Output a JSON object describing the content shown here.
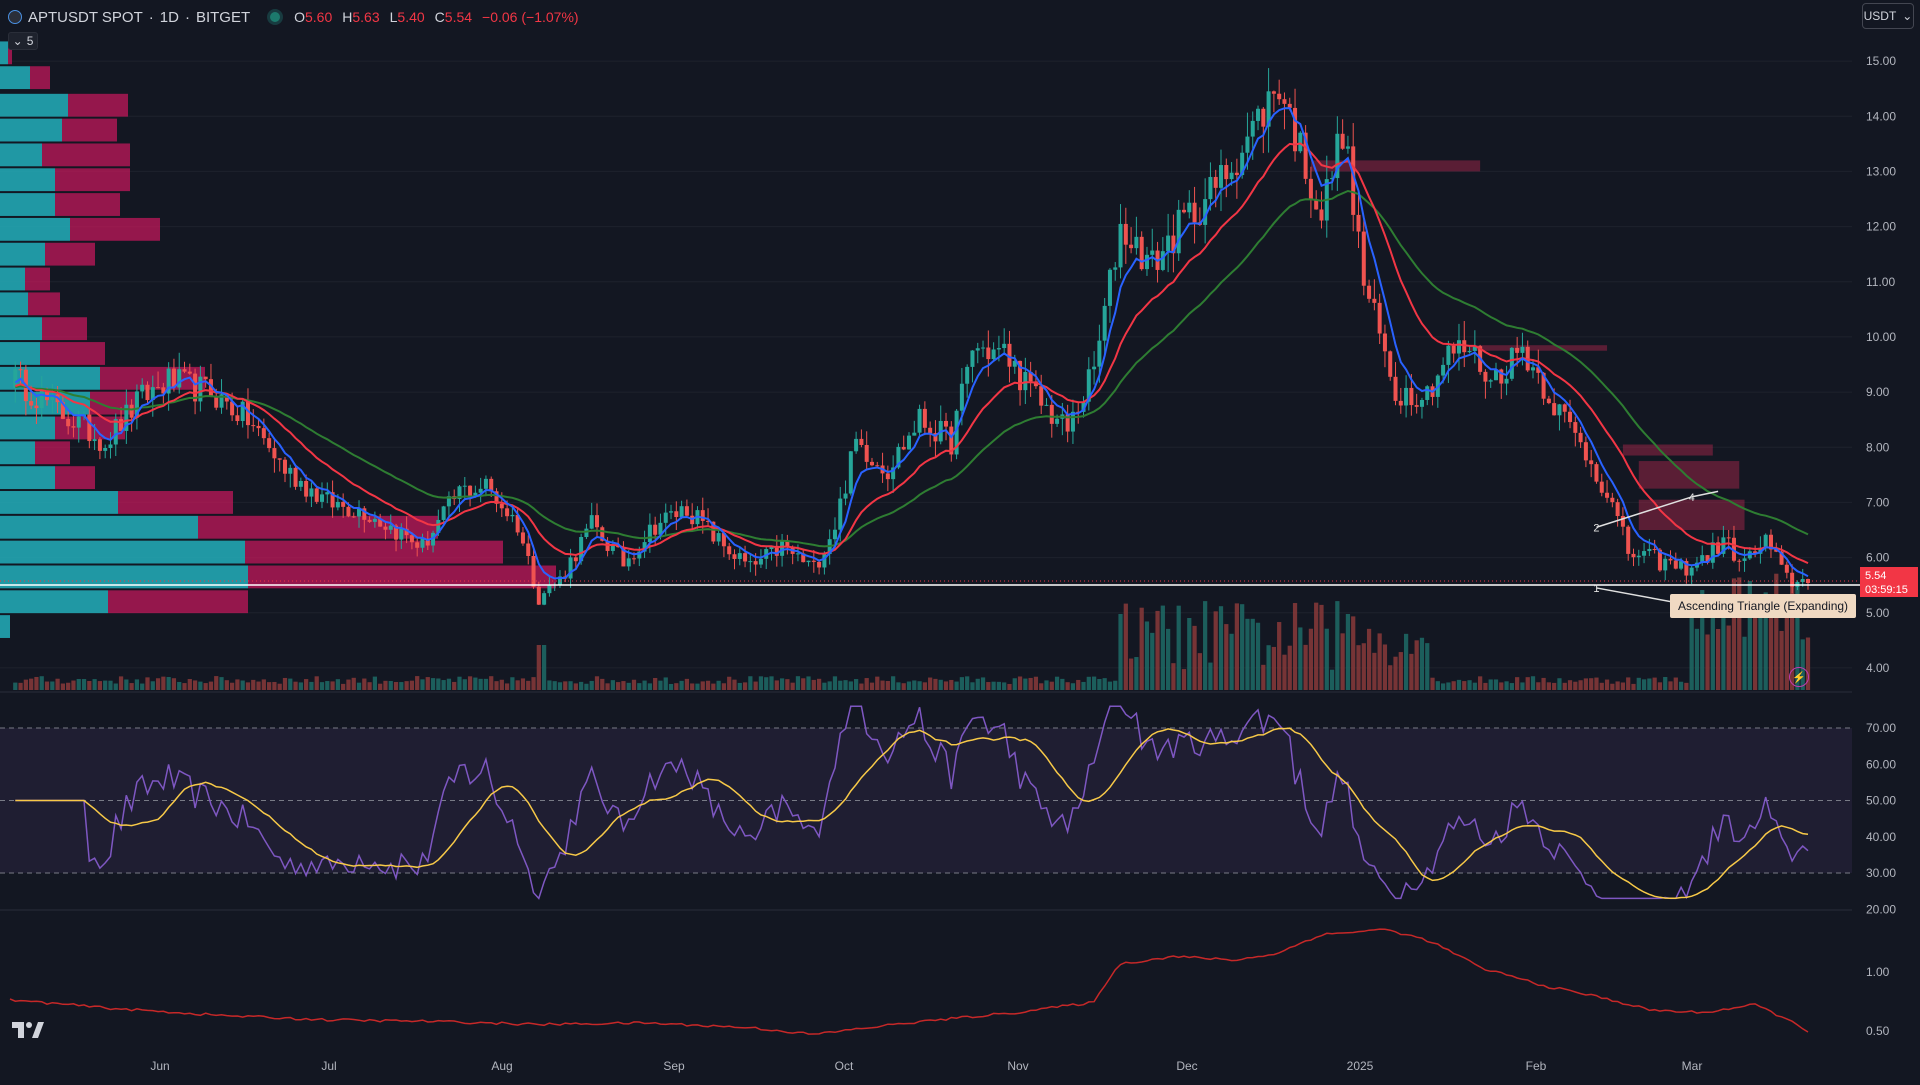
{
  "header": {
    "symbol": "APTUSDT SPOT",
    "interval": "1D",
    "exchange": "BITGET",
    "sep": "·",
    "open_label": "O",
    "open": "5.60",
    "high_label": "H",
    "high": "5.63",
    "low_label": "L",
    "low": "5.40",
    "close_label": "C",
    "close": "5.54",
    "change": "−0.06 (−1.07%)"
  },
  "toolbar": {
    "collapse_count": "5",
    "currency": "USDT"
  },
  "price_tag": {
    "price": "5.54",
    "countdown": "03:59:15"
  },
  "pattern_label": "Ascending Triangle (Expanding)",
  "chart_data": [
    {
      "type": "candlestick",
      "name": "price",
      "y_ticks": [
        "15.00",
        "14.00",
        "13.00",
        "12.00",
        "11.00",
        "10.00",
        "9.00",
        "8.00",
        "7.00",
        "6.00",
        "5.00",
        "4.00"
      ],
      "ylim": [
        3.6,
        15.6
      ],
      "x_ticks": [
        "Jun",
        "Jul",
        "Aug",
        "Sep",
        "Oct",
        "Nov",
        "Dec",
        "2025",
        "Feb",
        "Mar"
      ],
      "colors": {
        "up": "#26a69a",
        "down": "#ef5350",
        "ema_fast": "#2962ff",
        "ema_mid": "#f23645",
        "ema_slow": "#2e7d32",
        "bg": "#131722"
      },
      "close_anchors": [
        [
          0,
          9.3
        ],
        [
          10,
          8.6
        ],
        [
          18,
          8.1
        ],
        [
          25,
          8.9
        ],
        [
          30,
          9.2
        ],
        [
          38,
          9.0
        ],
        [
          45,
          8.5
        ],
        [
          52,
          7.6
        ],
        [
          60,
          7.0
        ],
        [
          67,
          6.85
        ],
        [
          72,
          6.55
        ],
        [
          78,
          6.2
        ],
        [
          85,
          7.2
        ],
        [
          90,
          7.3
        ],
        [
          96,
          6.6
        ],
        [
          100,
          5.3
        ],
        [
          104,
          5.6
        ],
        [
          110,
          6.6
        ],
        [
          116,
          5.9
        ],
        [
          122,
          6.6
        ],
        [
          128,
          6.9
        ],
        [
          134,
          6.3
        ],
        [
          140,
          5.8
        ],
        [
          146,
          6.2
        ],
        [
          152,
          5.8
        ],
        [
          156,
          6.6
        ],
        [
          160,
          8.1
        ],
        [
          166,
          7.6
        ],
        [
          172,
          8.5
        ],
        [
          178,
          8.1
        ],
        [
          182,
          9.8
        ],
        [
          188,
          9.7
        ],
        [
          194,
          8.9
        ],
        [
          200,
          8.3
        ],
        [
          205,
          9.4
        ],
        [
          210,
          12.0
        ],
        [
          216,
          11.3
        ],
        [
          222,
          12.1
        ],
        [
          228,
          12.7
        ],
        [
          234,
          13.6
        ],
        [
          240,
          14.6
        ],
        [
          244,
          13.4
        ],
        [
          248,
          12.2
        ],
        [
          252,
          13.8
        ],
        [
          256,
          11.0
        ],
        [
          262,
          9.0
        ],
        [
          268,
          9.0
        ],
        [
          272,
          9.7
        ],
        [
          276,
          9.8
        ],
        [
          280,
          9.2
        ],
        [
          286,
          9.8
        ],
        [
          292,
          8.8
        ],
        [
          298,
          7.9
        ],
        [
          302,
          7.2
        ],
        [
          306,
          6.1
        ],
        [
          310,
          6.0
        ],
        [
          316,
          5.8
        ],
        [
          320,
          5.95
        ],
        [
          324,
          6.3
        ],
        [
          328,
          5.9
        ],
        [
          332,
          6.3
        ],
        [
          336,
          5.6
        ],
        [
          340,
          5.54
        ]
      ],
      "volume_profile": [
        {
          "price": 15.15,
          "buy": 8,
          "sell": 4
        },
        {
          "price": 14.7,
          "buy": 30,
          "sell": 20
        },
        {
          "price": 14.2,
          "buy": 68,
          "sell": 60
        },
        {
          "price": 13.75,
          "buy": 62,
          "sell": 55
        },
        {
          "price": 13.3,
          "buy": 42,
          "sell": 88
        },
        {
          "price": 12.85,
          "buy": 55,
          "sell": 75
        },
        {
          "price": 12.4,
          "buy": 55,
          "sell": 65
        },
        {
          "price": 11.95,
          "buy": 70,
          "sell": 90
        },
        {
          "price": 11.5,
          "buy": 45,
          "sell": 50
        },
        {
          "price": 11.05,
          "buy": 25,
          "sell": 25
        },
        {
          "price": 10.6,
          "buy": 28,
          "sell": 32
        },
        {
          "price": 10.15,
          "buy": 42,
          "sell": 45
        },
        {
          "price": 9.7,
          "buy": 40,
          "sell": 65
        },
        {
          "price": 9.25,
          "buy": 100,
          "sell": 105
        },
        {
          "price": 8.8,
          "buy": 90,
          "sell": 45
        },
        {
          "price": 8.35,
          "buy": 55,
          "sell": 70
        },
        {
          "price": 7.9,
          "buy": 35,
          "sell": 35
        },
        {
          "price": 7.45,
          "buy": 55,
          "sell": 40
        },
        {
          "price": 7.0,
          "buy": 118,
          "sell": 115
        },
        {
          "price": 6.55,
          "buy": 198,
          "sell": 240
        },
        {
          "price": 6.1,
          "buy": 245,
          "sell": 258
        },
        {
          "price": 5.65,
          "buy": 248,
          "sell": 308
        },
        {
          "price": 5.2,
          "buy": 108,
          "sell": 140
        },
        {
          "price": 4.75,
          "buy": 10,
          "sell": 0
        }
      ],
      "pattern_points": [
        {
          "label": "1",
          "bar": 300,
          "price": 5.45
        },
        {
          "label": "2",
          "bar": 300,
          "price": 6.55
        },
        {
          "label": "3",
          "bar": 317,
          "price": 5.15
        },
        {
          "label": "4",
          "bar": 318,
          "price": 7.1
        },
        {
          "label": "5",
          "bar": 323,
          "price": 5.1
        }
      ]
    },
    {
      "type": "line",
      "name": "rsi",
      "y_ticks": [
        "70.00",
        "60.00",
        "50.00",
        "40.00",
        "30.00",
        "20.00"
      ],
      "ylim": [
        20,
        70
      ],
      "bands": [
        30,
        50,
        70
      ],
      "colors": {
        "rsi": "#7e57c2",
        "ma": "#f7c948",
        "band_fill": "#2a2540"
      }
    },
    {
      "type": "line",
      "name": "ratio",
      "y_ticks": [
        "1.00",
        "0.50"
      ],
      "scale": "log",
      "colors": {
        "line": "#c62828"
      },
      "anchors": [
        [
          0,
          0.72
        ],
        [
          20,
          0.65
        ],
        [
          40,
          0.6
        ],
        [
          60,
          0.57
        ],
        [
          80,
          0.56
        ],
        [
          100,
          0.54
        ],
        [
          120,
          0.55
        ],
        [
          140,
          0.52
        ],
        [
          152,
          0.48
        ],
        [
          170,
          0.55
        ],
        [
          190,
          0.62
        ],
        [
          205,
          0.7
        ],
        [
          210,
          1.1
        ],
        [
          220,
          1.2
        ],
        [
          232,
          1.15
        ],
        [
          240,
          1.25
        ],
        [
          248,
          1.55
        ],
        [
          260,
          1.65
        ],
        [
          268,
          1.45
        ],
        [
          278,
          1.05
        ],
        [
          290,
          0.85
        ],
        [
          300,
          0.75
        ],
        [
          310,
          0.64
        ],
        [
          320,
          0.62
        ],
        [
          330,
          0.68
        ],
        [
          340,
          0.5
        ]
      ]
    }
  ]
}
